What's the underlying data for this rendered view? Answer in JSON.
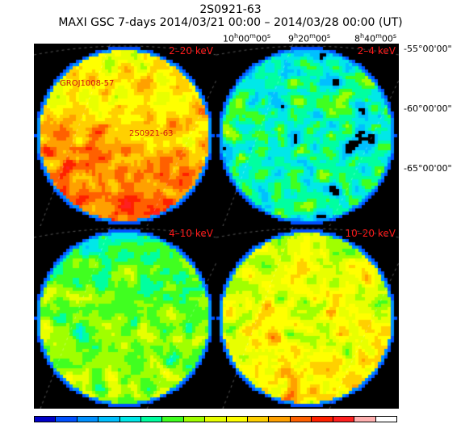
{
  "header": {
    "source_name": "2S0921-63",
    "subtitle": "MAXI GSC 7-days 2014/03/21 00:00 – 2014/03/28 00:00 (UT)"
  },
  "axes": {
    "ra_labels": [
      "10h00m00s",
      "9h20m00s",
      "8h40m00s"
    ],
    "dec_labels": [
      "-55°00'00\"",
      "-60°00'00\"",
      "-65°00'00\""
    ]
  },
  "panels": [
    {
      "id": "2-20",
      "label": "2–20 keV",
      "style": "warm",
      "sources": [
        {
          "name": "GROJ1008-57"
        },
        {
          "name": "2S0921-63"
        }
      ]
    },
    {
      "id": "2-4",
      "label": "2–4 keV",
      "style": "sparse",
      "sources": []
    },
    {
      "id": "4-10",
      "label": "4–10 keV",
      "style": "cool",
      "sources": []
    },
    {
      "id": "10-20",
      "label": "10–20 keV",
      "style": "mixed",
      "sources": []
    }
  ],
  "colorbar": {
    "colors": [
      "#0000c8",
      "#0050ff",
      "#0090ff",
      "#00c0ff",
      "#00e8e8",
      "#00ffa0",
      "#40ff20",
      "#a0ff00",
      "#e8ff00",
      "#ffff00",
      "#ffd000",
      "#ffa000",
      "#ff6000",
      "#ff2000",
      "#ff2020",
      "#ffb0b0",
      "#ffffff"
    ]
  }
}
